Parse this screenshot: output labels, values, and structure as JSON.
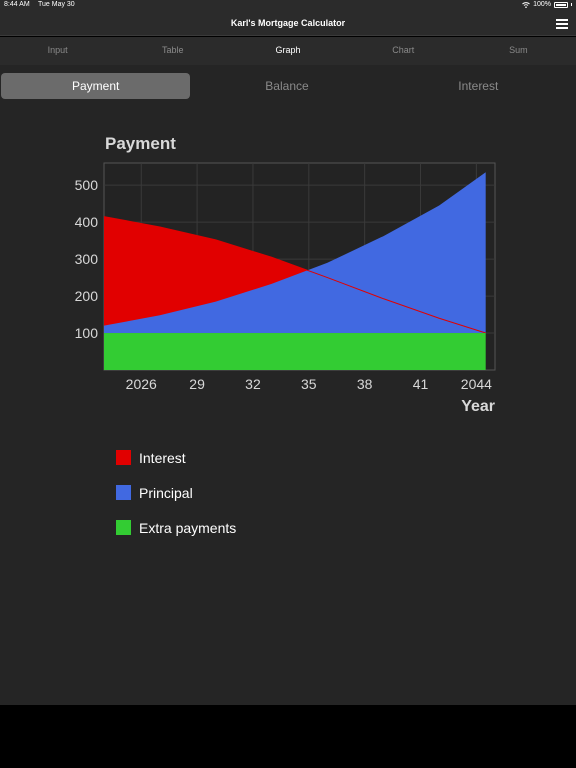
{
  "status": {
    "time": "8:44 AM",
    "date": "Tue May 30",
    "battery": "100%"
  },
  "app": {
    "title": "Karl's Mortgage Calculator"
  },
  "tabs": [
    "Input",
    "Table",
    "Graph",
    "Chart",
    "Sum"
  ],
  "active_tab": "Graph",
  "segments": [
    "Payment",
    "Balance",
    "Interest"
  ],
  "active_segment": "Payment",
  "colors": {
    "interest": "#e10000",
    "principal": "#4169e1",
    "extra": "#33cc33"
  },
  "chart_data": {
    "type": "area",
    "title": "Payment",
    "xlabel": "Year",
    "ylabel": "",
    "xlim": [
      2024,
      2045
    ],
    "ylim": [
      0,
      560
    ],
    "yticks": [
      100,
      200,
      300,
      400,
      500
    ],
    "xticks": [
      {
        "value": 2026,
        "label": "2026"
      },
      {
        "value": 2029,
        "label": "29"
      },
      {
        "value": 2032,
        "label": "32"
      },
      {
        "value": 2035,
        "label": "35"
      },
      {
        "value": 2038,
        "label": "38"
      },
      {
        "value": 2041,
        "label": "41"
      },
      {
        "value": 2044,
        "label": "2044"
      }
    ],
    "stacking": "stacked: extra payments, then interest and principal",
    "series": [
      {
        "name": "Interest",
        "color": "#e10000",
        "x": [
          2024,
          2027,
          2030,
          2033,
          2036,
          2039,
          2042,
          2044.5
        ],
        "y": [
          315,
          287,
          252,
          205,
          150,
          93,
          40,
          0
        ]
      },
      {
        "name": "Principal",
        "color": "#4169e1",
        "x": [
          2024,
          2027,
          2030,
          2033,
          2036,
          2039,
          2042,
          2044.5
        ],
        "y": [
          20,
          48,
          85,
          133,
          190,
          262,
          345,
          435
        ]
      },
      {
        "name": "Extra payments",
        "color": "#33cc33",
        "x": [
          2024,
          2044.5
        ],
        "y": [
          100,
          100
        ]
      }
    ],
    "legend": [
      "Interest",
      "Principal",
      "Extra payments"
    ],
    "legend_position": "below",
    "grid": true
  }
}
